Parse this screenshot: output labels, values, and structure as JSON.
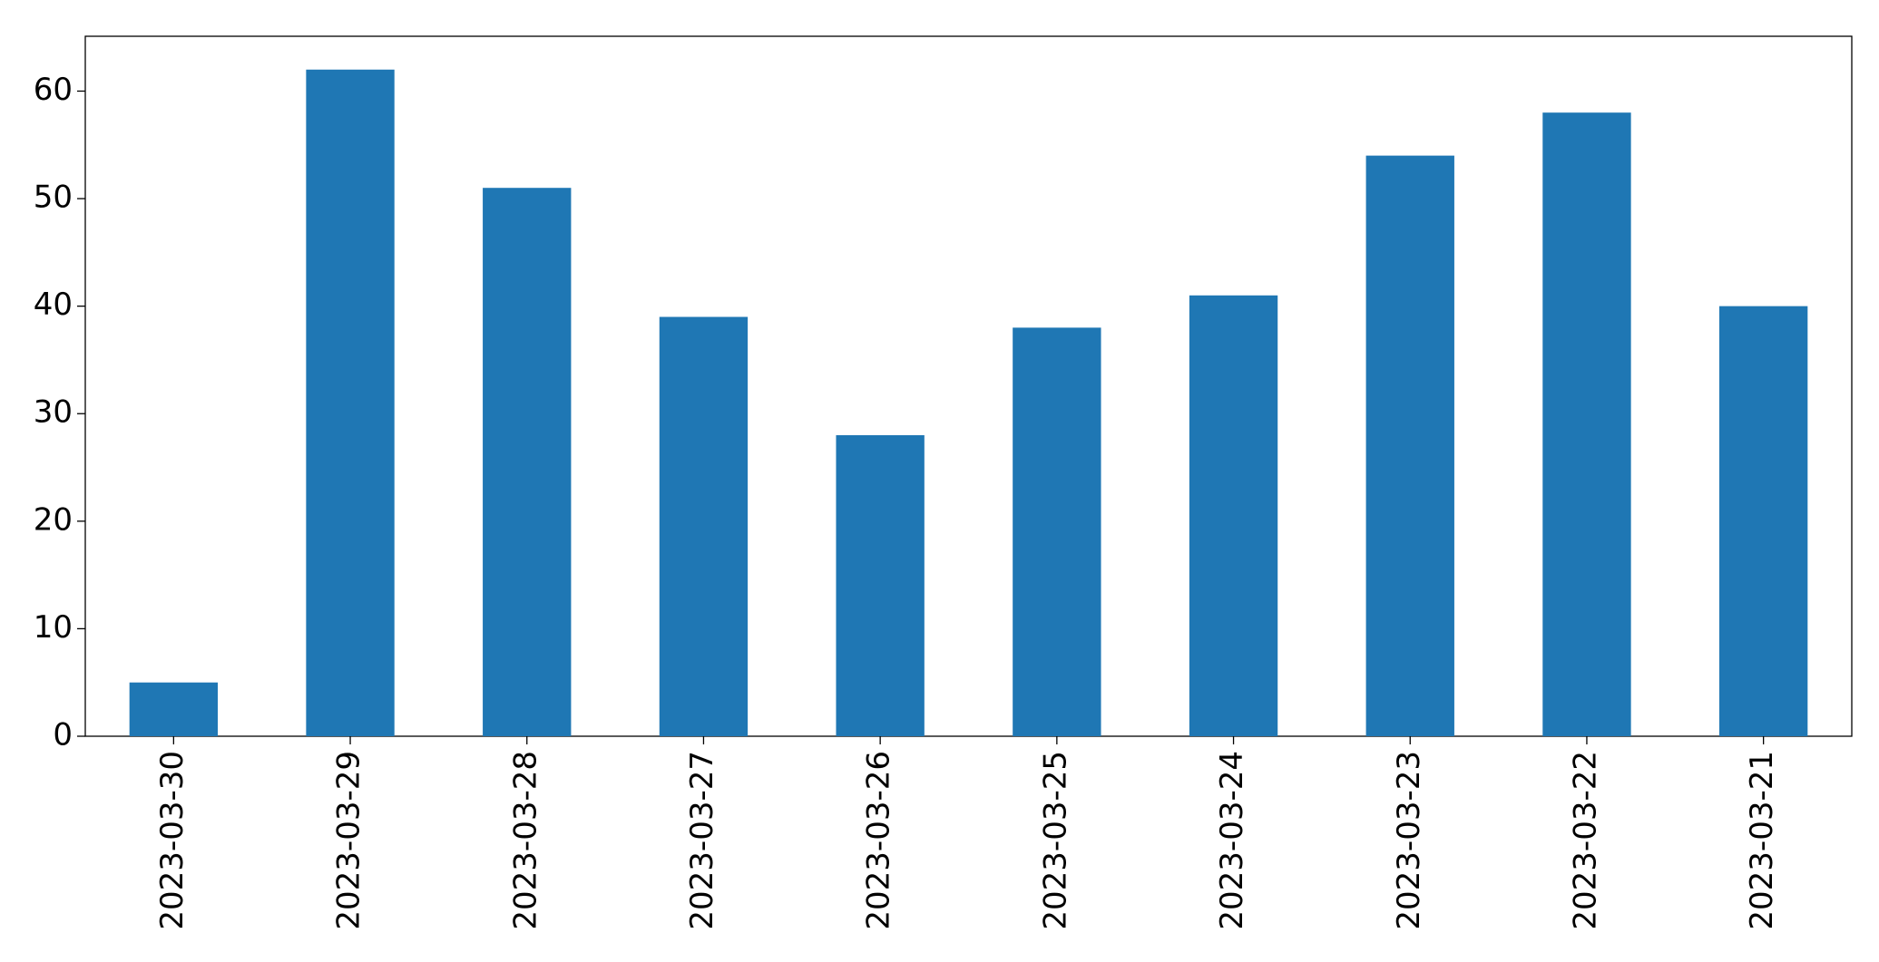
{
  "chart_data": {
    "type": "bar",
    "categories": [
      "2023-03-30",
      "2023-03-29",
      "2023-03-28",
      "2023-03-27",
      "2023-03-26",
      "2023-03-25",
      "2023-03-24",
      "2023-03-23",
      "2023-03-22",
      "2023-03-21"
    ],
    "values": [
      5,
      62,
      51,
      39,
      28,
      38,
      41,
      54,
      58,
      40
    ],
    "color": "#1f77b4",
    "ylim": [
      0,
      65.1
    ],
    "yticks": [
      0,
      10,
      20,
      30,
      40,
      50,
      60
    ],
    "grid": false
  }
}
